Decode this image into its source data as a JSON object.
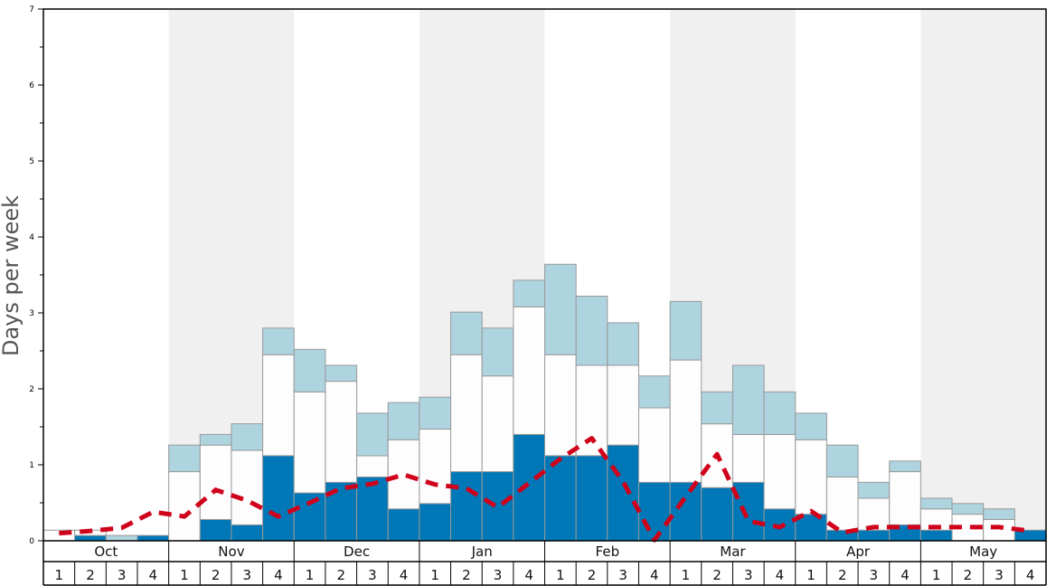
{
  "chart_data": {
    "type": "bar",
    "stacked": true,
    "ylabel": "Days per week",
    "ylim": [
      0,
      7
    ],
    "yticks": [
      "0",
      "1",
      "2",
      "3",
      "4",
      "5",
      "6",
      "7"
    ],
    "months": [
      "Oct",
      "Nov",
      "Dec",
      "Jan",
      "Feb",
      "Mar",
      "Apr",
      "May"
    ],
    "week_labels": [
      "1",
      "2",
      "3",
      "4"
    ],
    "colors": {
      "bottom": "#0077b6",
      "middle": "#fdfdfd",
      "top": "#aed4e0",
      "line": "#d0021b",
      "band": "#f0f0f0",
      "outline": "#999999"
    },
    "series": [
      {
        "values": [
          0,
          0.07,
          0,
          0.07,
          0,
          0.28,
          0.21,
          1.12,
          0.63,
          0.77,
          0.84,
          0.42,
          0.49,
          0.91,
          0.91,
          1.4,
          1.12,
          1.12,
          1.26,
          0.77,
          0.77,
          0.7,
          0.77,
          0.42,
          0.35,
          0.14,
          0.14,
          0.21,
          0.14,
          0,
          0,
          0.14
        ]
      },
      {
        "values": [
          0.14,
          0.07,
          0,
          0,
          0.91,
          0.98,
          0.98,
          1.33,
          1.33,
          1.33,
          0.28,
          0.91,
          0.98,
          1.54,
          1.26,
          1.68,
          1.33,
          1.19,
          1.05,
          0.98,
          1.61,
          0.84,
          0.63,
          0.98,
          0.98,
          0.7,
          0.42,
          0.7,
          0.28,
          0.35,
          0.28,
          0
        ]
      },
      {
        "values": [
          0,
          0,
          0.07,
          0,
          0.35,
          0.14,
          0.35,
          0.35,
          0.56,
          0.21,
          0.56,
          0.49,
          0.42,
          0.56,
          0.63,
          0.35,
          1.19,
          0.91,
          0.56,
          0.42,
          0.77,
          0.42,
          0.91,
          0.56,
          0.35,
          0.42,
          0.21,
          0.14,
          0.14,
          0.14,
          0.14,
          0
        ]
      }
    ],
    "line": {
      "values": [
        0.1,
        0.13,
        0.17,
        0.38,
        0.32,
        0.67,
        0.53,
        0.32,
        0.5,
        0.69,
        0.75,
        0.87,
        0.74,
        0.69,
        0.44,
        0.76,
        1.08,
        1.35,
        0.78,
        0.01,
        0.58,
        1.14,
        0.26,
        0.18,
        0.39,
        0.11,
        0.18,
        0.18,
        0.18,
        0.18,
        0.18,
        0.13
      ]
    }
  }
}
